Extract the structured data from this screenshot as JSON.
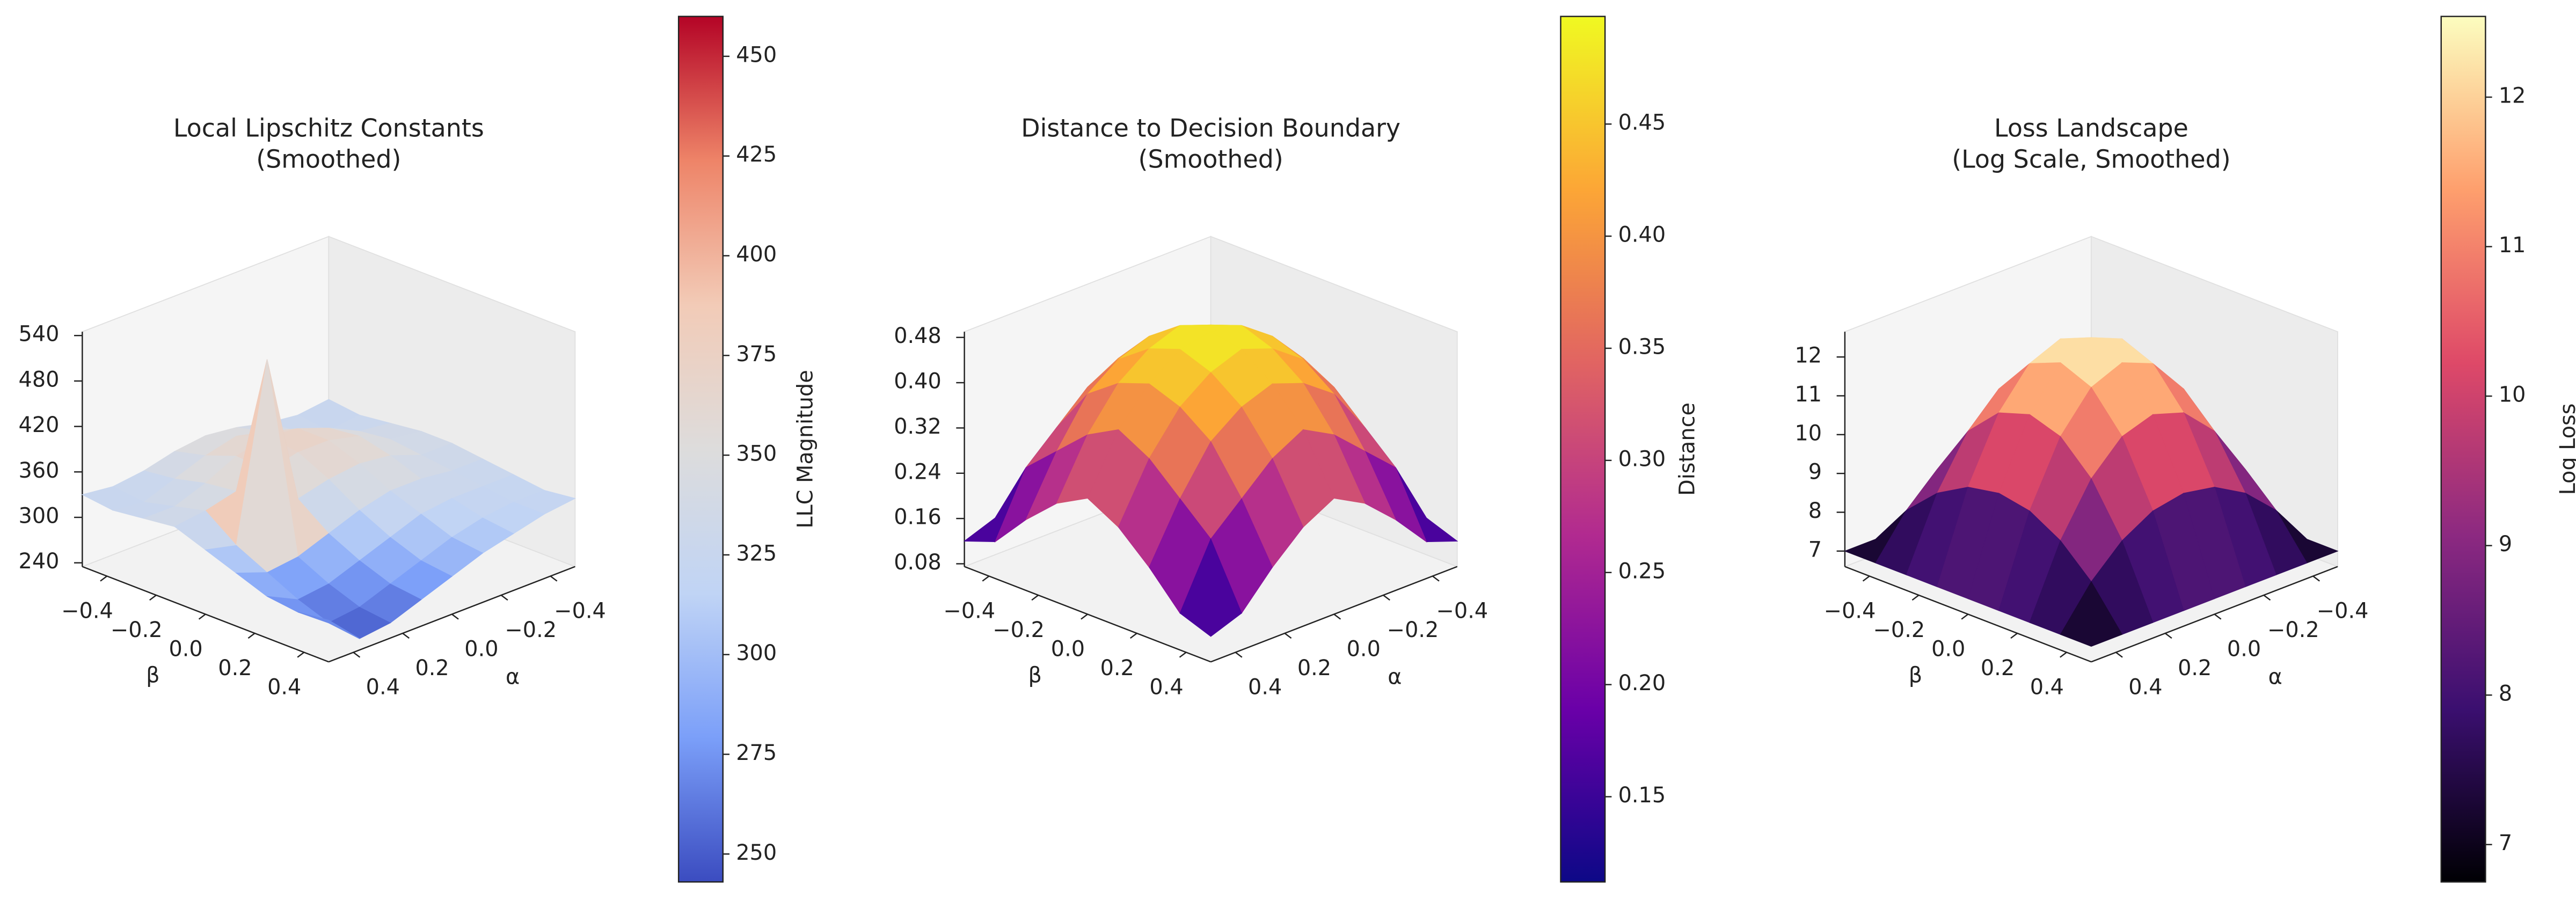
{
  "chart_data": [
    {
      "type": "surface",
      "title": [
        "Local Lipschitz Constants",
        "(Smoothed)"
      ],
      "xlabel": "α",
      "ylabel": "β",
      "colorbar_label": "LLC Magnitude",
      "colormap": [
        "#3b4cc0",
        "#7b9ff9",
        "#c0d4f5",
        "#dddcdc",
        "#f2cbb7",
        "#ee8468",
        "#b40426"
      ],
      "x": [
        -0.5,
        -0.375,
        -0.25,
        -0.125,
        0,
        0.125,
        0.25,
        0.375,
        0.5
      ],
      "y": [
        -0.5,
        -0.375,
        -0.25,
        -0.125,
        0,
        0.125,
        0.25,
        0.375,
        0.5
      ],
      "z": [
        [
          330,
          325,
          330,
          340,
          345,
          340,
          330,
          325,
          330
        ],
        [
          325,
          320,
          335,
          350,
          360,
          350,
          335,
          320,
          325
        ],
        [
          330,
          335,
          355,
          370,
          375,
          365,
          345,
          330,
          330
        ],
        [
          335,
          340,
          360,
          370,
          370,
          360,
          350,
          340,
          335
        ],
        [
          335,
          335,
          350,
          355,
          350,
          340,
          540,
          310,
          320
        ],
        [
          330,
          330,
          335,
          335,
          325,
          310,
          295,
          290,
          305
        ],
        [
          325,
          325,
          325,
          320,
          305,
          290,
          275,
          270,
          290
        ],
        [
          320,
          320,
          315,
          305,
          290,
          275,
          260,
          255,
          285
        ],
        [
          325,
          320,
          310,
          300,
          285,
          270,
          255,
          250,
          290
        ]
      ],
      "xlim": [
        -0.5,
        0.5
      ],
      "ylim": [
        -0.5,
        0.5
      ],
      "zlim": [
        235,
        545
      ],
      "xticks": [
        {
          "value": -0.4,
          "label": "−0.4"
        },
        {
          "value": -0.2,
          "label": "−0.2"
        },
        {
          "value": 0,
          "label": "0.0"
        },
        0.2,
        0.4
      ],
      "yticks": [
        {
          "value": -0.4,
          "label": "−0.4"
        },
        {
          "value": -0.2,
          "label": "−0.2"
        },
        {
          "value": 0,
          "label": "0.0"
        },
        0.2,
        0.4
      ],
      "zticks": [
        240,
        300,
        360,
        420,
        480,
        540
      ],
      "clim": [
        243,
        460
      ],
      "cticks": [
        250,
        275,
        300,
        325,
        350,
        375,
        400,
        425,
        450
      ]
    },
    {
      "type": "surface",
      "title": [
        "Distance to Decision Boundary",
        "(Smoothed)"
      ],
      "xlabel": "α",
      "ylabel": "β",
      "colorbar_label": "Distance",
      "colormap": [
        "#0d0887",
        "#6a00a8",
        "#b12a90",
        "#e16462",
        "#fca636",
        "#f0f921"
      ],
      "x": [
        -0.5,
        -0.375,
        -0.25,
        -0.125,
        0,
        0.125,
        0.25,
        0.375,
        0.5
      ],
      "y": [
        -0.5,
        -0.375,
        -0.25,
        -0.125,
        0,
        0.125,
        0.25,
        0.375,
        0.5
      ],
      "z": [
        [
          0.12,
          0.14,
          0.2,
          0.25,
          0.28,
          0.25,
          0.2,
          0.14,
          0.12
        ],
        [
          0.14,
          0.25,
          0.3,
          0.35,
          0.38,
          0.35,
          0.3,
          0.25,
          0.14
        ],
        [
          0.2,
          0.3,
          0.38,
          0.42,
          0.44,
          0.42,
          0.38,
          0.3,
          0.2
        ],
        [
          0.25,
          0.35,
          0.42,
          0.46,
          0.48,
          0.46,
          0.42,
          0.35,
          0.25
        ],
        [
          0.28,
          0.38,
          0.44,
          0.48,
          0.49,
          0.48,
          0.44,
          0.38,
          0.28
        ],
        [
          0.25,
          0.35,
          0.42,
          0.46,
          0.48,
          0.46,
          0.42,
          0.35,
          0.25
        ],
        [
          0.2,
          0.3,
          0.38,
          0.42,
          0.44,
          0.42,
          0.38,
          0.3,
          0.2
        ],
        [
          0.14,
          0.25,
          0.3,
          0.35,
          0.38,
          0.35,
          0.3,
          0.25,
          0.14
        ],
        [
          0.12,
          0.14,
          0.2,
          0.25,
          0.28,
          0.25,
          0.2,
          0.14,
          0.12
        ]
      ],
      "xlim": [
        -0.5,
        0.5
      ],
      "ylim": [
        -0.5,
        0.5
      ],
      "zlim": [
        0.075,
        0.49
      ],
      "xticks": [
        {
          "value": -0.4,
          "label": "−0.4"
        },
        {
          "value": -0.2,
          "label": "−0.2"
        },
        {
          "value": 0,
          "label": "0.0"
        },
        0.2,
        0.4
      ],
      "yticks": [
        {
          "value": -0.4,
          "label": "−0.4"
        },
        {
          "value": -0.2,
          "label": "−0.2"
        },
        {
          "value": 0,
          "label": "0.0"
        },
        0.2,
        0.4
      ],
      "zticks": [
        0.08,
        0.16,
        0.24,
        0.32,
        {
          "value": 0.4,
          "label": "0.40"
        },
        0.48
      ],
      "clim": [
        0.112,
        0.498
      ],
      "cticks": [
        0.15,
        {
          "value": 0.2,
          "label": "0.20"
        },
        0.25,
        {
          "value": 0.3,
          "label": "0.30"
        },
        0.35,
        {
          "value": 0.4,
          "label": "0.40"
        },
        0.45
      ]
    },
    {
      "type": "surface",
      "title": [
        "Loss Landscape",
        "(Log Scale, Smoothed)"
      ],
      "xlabel": "α",
      "ylabel": "β",
      "colorbar_label": "Log Loss",
      "colormap": [
        "#000004",
        "#3b0f70",
        "#8c2981",
        "#de4968",
        "#fe9f6d",
        "#fcfdbf"
      ],
      "x": [
        -0.5,
        -0.375,
        -0.25,
        -0.125,
        0,
        0.125,
        0.25,
        0.375,
        0.5
      ],
      "y": [
        -0.5,
        -0.375,
        -0.25,
        -0.125,
        0,
        0.125,
        0.25,
        0.375,
        0.5
      ],
      "z": [
        [
          7,
          7,
          7,
          7,
          7,
          7,
          7,
          7,
          7
        ],
        [
          7,
          8.05,
          8.8,
          9.26,
          9.41,
          9.26,
          8.8,
          8.05,
          7
        ],
        [
          7,
          8.8,
          10.09,
          10.87,
          11.13,
          10.87,
          10.09,
          8.8,
          7
        ],
        [
          7,
          9.26,
          10.87,
          11.83,
          12.16,
          11.83,
          10.87,
          9.26,
          7
        ],
        [
          7,
          9.41,
          11.13,
          12.16,
          12.5,
          12.16,
          11.13,
          9.41,
          7
        ],
        [
          7,
          9.26,
          10.87,
          11.83,
          12.16,
          11.83,
          10.87,
          9.26,
          7
        ],
        [
          7,
          8.8,
          10.09,
          10.87,
          11.13,
          10.87,
          10.09,
          8.8,
          7
        ],
        [
          7,
          8.05,
          8.8,
          9.26,
          9.41,
          9.26,
          8.8,
          8.05,
          7
        ],
        [
          7,
          7,
          7,
          7,
          7,
          7,
          7,
          7,
          7
        ]
      ],
      "xlim": [
        -0.5,
        0.5
      ],
      "ylim": [
        -0.5,
        0.5
      ],
      "zlim": [
        6.6,
        12.65
      ],
      "xticks": [
        {
          "value": -0.4,
          "label": "−0.4"
        },
        {
          "value": -0.2,
          "label": "−0.2"
        },
        {
          "value": 0,
          "label": "0.0"
        },
        0.2,
        0.4
      ],
      "yticks": [
        {
          "value": -0.4,
          "label": "−0.4"
        },
        {
          "value": -0.2,
          "label": "−0.2"
        },
        {
          "value": 0,
          "label": "0.0"
        },
        0.2,
        0.4
      ],
      "zticks": [
        7,
        8,
        9,
        10,
        11,
        12
      ],
      "clim": [
        6.75,
        12.54
      ],
      "cticks": [
        7,
        8,
        9,
        10,
        11,
        12
      ]
    }
  ]
}
